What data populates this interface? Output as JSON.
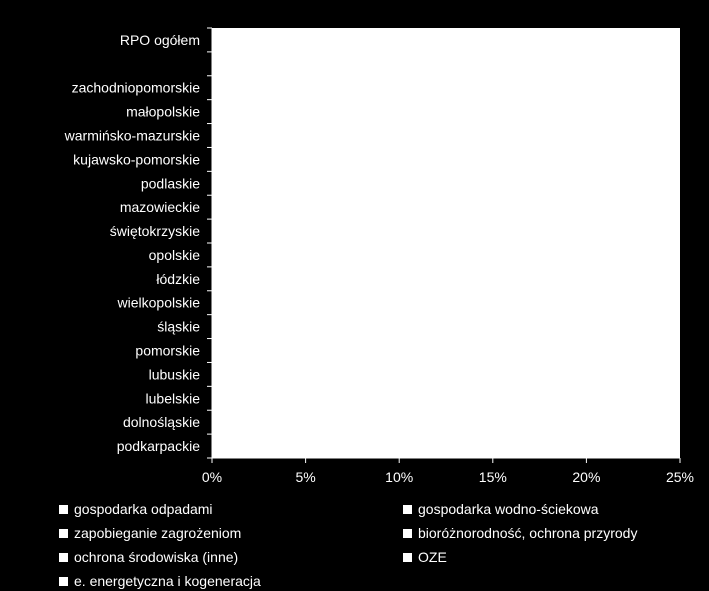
{
  "chart_data": {
    "type": "bar",
    "orientation": "horizontal",
    "stacked": true,
    "categories": [
      "RPO ogółem",
      "",
      "zachodniopomorskie",
      "małopolskie",
      "warmińsko-mazurskie",
      "kujawsko-pomorskie",
      "podlaskie",
      "mazowieckie",
      "świętokrzyskie",
      "opolskie",
      "łódzkie",
      "wielkopolskie",
      "śląskie",
      "pomorskie",
      "lubuskie",
      "lubelskie",
      "dolnośląskie",
      "podkarpackie"
    ],
    "x_ticks": [
      "0%",
      "5%",
      "10%",
      "15%",
      "20%",
      "25%"
    ],
    "xlim": [
      0,
      25
    ],
    "series": [
      {
        "name": "gospodarka odpadami",
        "color": "#ffffff",
        "values": [
          0,
          0,
          0,
          0,
          0,
          0,
          0,
          0,
          0,
          0,
          0,
          0,
          0,
          0,
          0,
          0,
          0,
          0
        ]
      },
      {
        "name": "gospodarka wodno-ściekowa",
        "color": "#ffffff",
        "values": [
          0,
          0,
          0,
          0,
          0,
          0,
          0,
          0,
          0,
          0,
          0,
          0,
          0,
          0,
          0,
          0,
          0,
          0
        ]
      },
      {
        "name": "zapobieganie zagrożeniom",
        "color": "#ffffff",
        "values": [
          0,
          0,
          0,
          0,
          0,
          0,
          0,
          0,
          0,
          0,
          0,
          0,
          0,
          0,
          0,
          0,
          0,
          0
        ]
      },
      {
        "name": "bioróżnorodność, ochrona przyrody",
        "color": "#ffffff",
        "values": [
          0,
          0,
          0,
          0,
          0,
          0,
          0,
          0,
          0,
          0,
          0,
          0,
          0,
          0,
          0,
          0,
          0,
          0
        ]
      },
      {
        "name": "ochrona środowiska (inne)",
        "color": "#ffffff",
        "values": [
          0,
          0,
          0,
          0,
          0,
          0,
          0,
          0,
          0,
          0,
          0,
          0,
          0,
          0,
          0,
          0,
          0,
          0
        ]
      },
      {
        "name": "OZE",
        "color": "#ffffff",
        "values": [
          0,
          0,
          0,
          0,
          0,
          0,
          0,
          0,
          0,
          0,
          0,
          0,
          0,
          0,
          0,
          0,
          0,
          0
        ]
      },
      {
        "name": "e.  energetyczna i kogeneracja",
        "color": "#ffffff",
        "values": [
          0,
          0,
          0,
          0,
          0,
          0,
          0,
          0,
          0,
          0,
          0,
          0,
          0,
          0,
          0,
          0,
          0,
          0
        ]
      }
    ],
    "legend_position": "bottom",
    "grid": false,
    "background": "#000000",
    "plot_background": "#ffffff",
    "text_color": "#ffffff"
  }
}
